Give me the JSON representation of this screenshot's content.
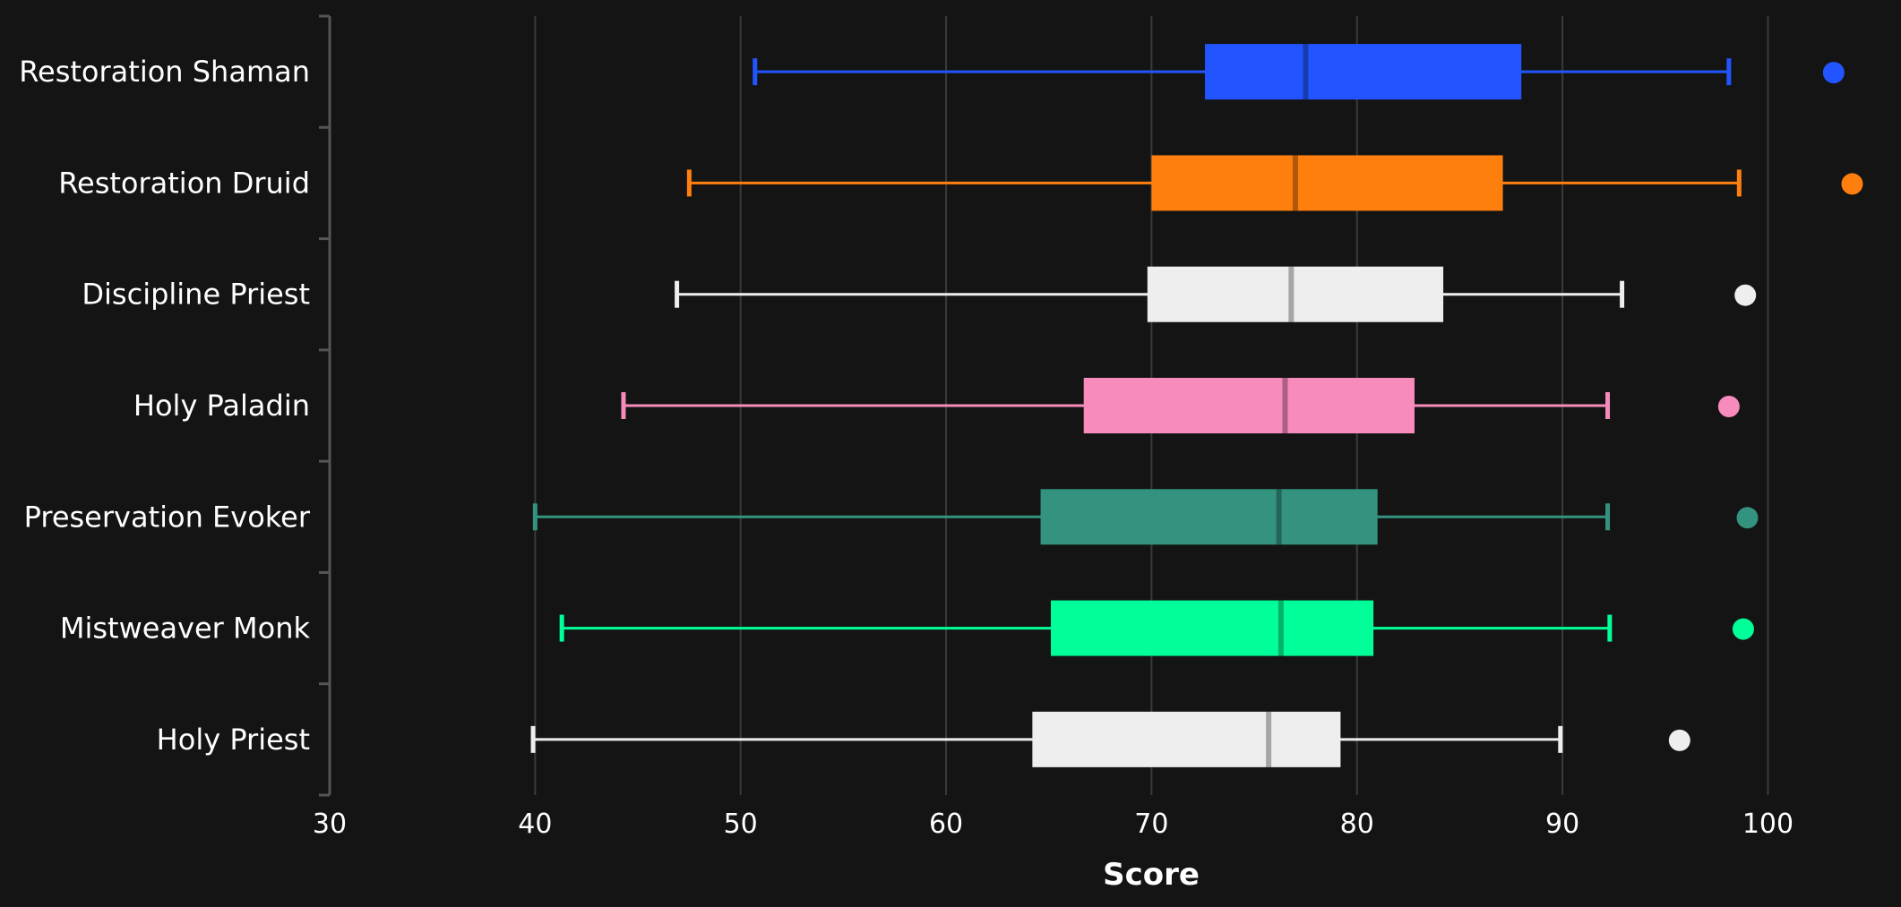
{
  "chart_data": {
    "type": "boxplot",
    "title": "",
    "xlabel": "Score",
    "ylabel": "",
    "xlim": [
      30,
      104.5
    ],
    "ticks": [
      30,
      40,
      50,
      60,
      70,
      80,
      90,
      100
    ],
    "grid": true,
    "orientation": "horizontal",
    "series": [
      {
        "name": "Restoration Shaman",
        "color": "#2255ff",
        "whisker_low": 50.7,
        "q1": 72.6,
        "median": 77.5,
        "q3": 88.0,
        "whisker_high": 98.1,
        "outliers": [
          103.2
        ]
      },
      {
        "name": "Restoration Druid",
        "color": "#ff7f0e",
        "whisker_low": 47.5,
        "q1": 70.0,
        "median": 77.0,
        "q3": 87.1,
        "whisker_high": 98.6,
        "outliers": [
          104.1
        ]
      },
      {
        "name": "Discipline Priest",
        "color": "#eeeeee",
        "whisker_low": 46.9,
        "q1": 69.8,
        "median": 76.8,
        "q3": 84.2,
        "whisker_high": 92.9,
        "outliers": [
          98.9
        ]
      },
      {
        "name": "Holy Paladin",
        "color": "#f78bbb",
        "whisker_low": 44.3,
        "q1": 66.7,
        "median": 76.5,
        "q3": 82.8,
        "whisker_high": 92.2,
        "outliers": [
          98.1
        ]
      },
      {
        "name": "Preservation Evoker",
        "color": "#33937f",
        "whisker_low": 40.0,
        "q1": 64.6,
        "median": 76.2,
        "q3": 81.0,
        "whisker_high": 92.2,
        "outliers": [
          99.0
        ]
      },
      {
        "name": "Mistweaver Monk",
        "color": "#00ff98",
        "whisker_low": 41.3,
        "q1": 65.1,
        "median": 76.3,
        "q3": 80.8,
        "whisker_high": 92.3,
        "outliers": [
          98.8
        ]
      },
      {
        "name": "Holy Priest",
        "color": "#eeeeee",
        "whisker_low": 39.9,
        "q1": 64.2,
        "median": 75.7,
        "q3": 79.2,
        "whisker_high": 89.9,
        "outliers": [
          95.7
        ]
      }
    ]
  },
  "colors": {
    "background": "#141414",
    "grid": "#3a3a3a",
    "axis": "#555555",
    "text": "#ffffff"
  }
}
